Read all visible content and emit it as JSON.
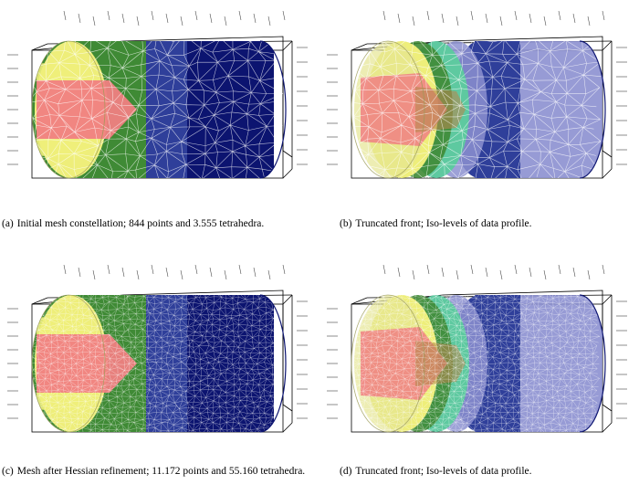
{
  "figure": {
    "panels": [
      {
        "id": "a",
        "label": "(a)",
        "caption": "Initial mesh constellation; 844 points and 3.555 tetrahedra.",
        "variant": "mesh",
        "mesh_density": "coarse"
      },
      {
        "id": "b",
        "label": "(b)",
        "caption": "Truncated front; Iso-levels of data profile.",
        "variant": "isolevels",
        "mesh_density": "coarse"
      },
      {
        "id": "c",
        "label": "(c)",
        "caption": "Mesh after Hessian refinement; 11.172 points and 55.160 tetrahedra.",
        "variant": "mesh",
        "mesh_density": "refined"
      },
      {
        "id": "d",
        "label": "(d)",
        "caption": "Truncated front; Iso-levels of data profile.",
        "variant": "isolevels",
        "mesh_density": "refined"
      }
    ],
    "colors": {
      "band_red": "#f07f82",
      "band_yellow": "#eeee7a",
      "band_green": "#3f8a35",
      "band_teal": "#5ec9a0",
      "band_blue": "#2f3f9a",
      "band_navy": "#0c1470",
      "band_lavender": "#8c90d0",
      "mesh_line": "#ffffff",
      "box_line": "#000000"
    }
  }
}
